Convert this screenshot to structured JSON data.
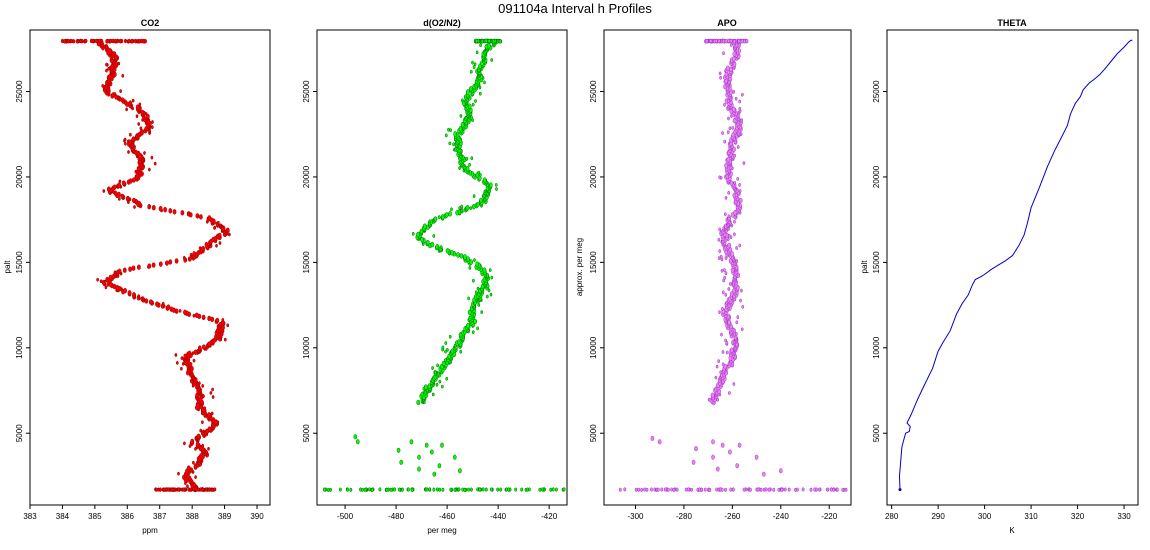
{
  "figure_title": "091104a   Interval h Profiles",
  "chart_data": [
    {
      "type": "scatter",
      "title": "CO2",
      "xlabel": "ppm",
      "ylabel": "palt",
      "xlim": [
        383,
        390.4
      ],
      "ylim": [
        800,
        28600
      ],
      "xticks": [
        383,
        384,
        385,
        386,
        387,
        388,
        389,
        390
      ],
      "yticks": [
        5000,
        10000,
        15000,
        20000,
        25000
      ],
      "color": "#ff0000",
      "edge_color": "#8b0000",
      "profile": [
        [
          1700,
          388.1
        ],
        [
          2600,
          387.8
        ],
        [
          3200,
          388.3
        ],
        [
          3800,
          388.5
        ],
        [
          4500,
          388.0
        ],
        [
          5500,
          388.6
        ],
        [
          6500,
          388.2
        ],
        [
          7500,
          388.4
        ],
        [
          8500,
          388.0
        ],
        [
          9500,
          387.7
        ],
        [
          10500,
          388.7
        ],
        [
          11500,
          389.0
        ],
        [
          12200,
          387.6
        ],
        [
          13000,
          386.3
        ],
        [
          13800,
          385.2
        ],
        [
          14500,
          385.6
        ],
        [
          15200,
          387.9
        ],
        [
          16000,
          388.6
        ],
        [
          16800,
          389.2
        ],
        [
          17600,
          388.5
        ],
        [
          18300,
          386.4
        ],
        [
          19200,
          385.3
        ],
        [
          20000,
          386.4
        ],
        [
          21000,
          386.6
        ],
        [
          22000,
          386.1
        ],
        [
          23000,
          386.6
        ],
        [
          24000,
          386.3
        ],
        [
          25000,
          385.5
        ],
        [
          26000,
          385.6
        ],
        [
          27000,
          385.5
        ],
        [
          27900,
          385.0
        ]
      ],
      "bottom_cluster": {
        "y": 1700,
        "x_range": [
          386.8,
          388.7
        ]
      },
      "top_cluster": {
        "y": 27950,
        "x_range": [
          384.0,
          386.6
        ]
      }
    },
    {
      "type": "scatter",
      "title": "d(O2/N2)",
      "xlabel": "per meg",
      "ylabel": "",
      "xlim": [
        -511,
        -413
      ],
      "ylim": [
        800,
        28600
      ],
      "xticks": [
        -500,
        -480,
        -460,
        -440,
        -420
      ],
      "xtick_labels": [
        "-500",
        "-480",
        "-460",
        "-440",
        "-420"
      ],
      "yticks": [
        5000,
        10000,
        15000,
        20000,
        25000
      ],
      "color": "#00ff00",
      "edge_color": "#006400",
      "profile": [
        [
          6800,
          -470
        ],
        [
          7500,
          -466
        ],
        [
          8500,
          -463
        ],
        [
          9500,
          -460
        ],
        [
          10500,
          -456
        ],
        [
          11500,
          -449
        ],
        [
          12500,
          -448
        ],
        [
          13500,
          -446
        ],
        [
          14500,
          -447
        ],
        [
          15300,
          -454
        ],
        [
          16000,
          -465
        ],
        [
          16600,
          -470
        ],
        [
          17500,
          -464
        ],
        [
          18500,
          -448
        ],
        [
          19500,
          -444
        ],
        [
          20500,
          -451
        ],
        [
          21500,
          -454
        ],
        [
          22500,
          -457
        ],
        [
          23500,
          -453
        ],
        [
          24500,
          -452
        ],
        [
          25500,
          -446
        ],
        [
          26500,
          -447
        ],
        [
          27500,
          -446
        ],
        [
          27950,
          -443
        ]
      ],
      "low_points": [
        [
          4800,
          -496
        ],
        [
          4500,
          -495
        ],
        [
          4500,
          -474
        ],
        [
          4300,
          -468
        ],
        [
          4300,
          -462
        ],
        [
          4000,
          -479
        ],
        [
          3900,
          -466
        ],
        [
          3600,
          -471
        ],
        [
          3600,
          -457
        ],
        [
          3300,
          -478
        ],
        [
          3100,
          -463
        ],
        [
          2900,
          -471
        ],
        [
          2800,
          -455
        ],
        [
          2600,
          -465
        ]
      ],
      "bottom_cluster": {
        "y": 1700,
        "x_range": [
          -509,
          -414
        ]
      },
      "top_cluster": {
        "y": 27950,
        "x_range": [
          -449,
          -439
        ]
      }
    },
    {
      "type": "scatter",
      "title": "APO",
      "xlabel": "",
      "ylabel": "approx. per meg",
      "xlim": [
        -313,
        -211
      ],
      "ylim": [
        800,
        28600
      ],
      "xticks": [
        -300,
        -280,
        -260,
        -240,
        -220
      ],
      "xtick_labels": [
        "-300",
        "-280",
        "-260",
        "-240",
        "-220"
      ],
      "yticks": [
        5000,
        10000,
        15000,
        20000,
        25000
      ],
      "color": "#ee82ee",
      "edge_color": "#9932cc",
      "profile": [
        [
          6800,
          -267
        ],
        [
          8000,
          -263
        ],
        [
          9000,
          -262
        ],
        [
          10000,
          -261
        ],
        [
          11000,
          -260
        ],
        [
          12000,
          -261
        ],
        [
          13000,
          -259
        ],
        [
          14000,
          -260
        ],
        [
          15000,
          -261
        ],
        [
          16000,
          -261
        ],
        [
          17000,
          -262
        ],
        [
          18000,
          -259
        ],
        [
          19000,
          -260
        ],
        [
          20000,
          -261
        ],
        [
          21000,
          -259
        ],
        [
          22000,
          -260
        ],
        [
          23000,
          -259
        ],
        [
          24000,
          -261
        ],
        [
          25000,
          -260
        ],
        [
          26000,
          -261
        ],
        [
          27000,
          -260
        ],
        [
          27950,
          -260
        ]
      ],
      "low_points": [
        [
          4700,
          -293
        ],
        [
          4500,
          -290
        ],
        [
          4500,
          -268
        ],
        [
          4300,
          -264
        ],
        [
          4300,
          -257
        ],
        [
          4100,
          -275
        ],
        [
          3900,
          -261
        ],
        [
          3600,
          -268
        ],
        [
          3600,
          -250
        ],
        [
          3300,
          -276
        ],
        [
          3100,
          -258
        ],
        [
          2900,
          -266
        ],
        [
          2800,
          -240
        ],
        [
          2600,
          -247
        ]
      ],
      "bottom_cluster": {
        "y": 1700,
        "x_range": [
          -309,
          -213
        ]
      },
      "top_cluster": {
        "y": 27950,
        "x_range": [
          -271,
          -254
        ]
      }
    },
    {
      "type": "line",
      "title": "THETA",
      "xlabel": "K",
      "ylabel": "palt",
      "xlim": [
        279,
        333
      ],
      "ylim": [
        800,
        28600
      ],
      "xticks": [
        280,
        290,
        300,
        310,
        320,
        330
      ],
      "yticks": [
        5000,
        10000,
        15000,
        20000,
        25000
      ],
      "color": "#0000cd",
      "series": [
        {
          "x": [
            281.8,
            281.7,
            282.0,
            282.2,
            282.6,
            283.0,
            283.8,
            284.0,
            283.3,
            284.2,
            285.6,
            287.0,
            288.8,
            290.0,
            291.0,
            292.6,
            294.0,
            295.2,
            296.5,
            297.4,
            298.0,
            299.5,
            301.5,
            304.5,
            306.0,
            307.4,
            308.5,
            309.2,
            310.0,
            311.8,
            313.5,
            315.0,
            316.5,
            317.8,
            318.5,
            319.5,
            320.6,
            321.2,
            322.5,
            323.5,
            324.8,
            325.8,
            327.0,
            328.5,
            330.0,
            331.0,
            331.5,
            331.8
          ],
          "y": [
            1700,
            2500,
            3500,
            4200,
            4600,
            5000,
            5100,
            5400,
            5600,
            6100,
            7000,
            7800,
            8800,
            9800,
            10300,
            11000,
            12000,
            12600,
            13100,
            13700,
            14000,
            14200,
            14600,
            15100,
            15400,
            16000,
            16600,
            17300,
            18200,
            19400,
            20600,
            21500,
            22300,
            23000,
            23700,
            24300,
            24700,
            25100,
            25500,
            25700,
            26000,
            26300,
            26700,
            27200,
            27600,
            27900,
            28000,
            28000
          ]
        }
      ]
    }
  ]
}
